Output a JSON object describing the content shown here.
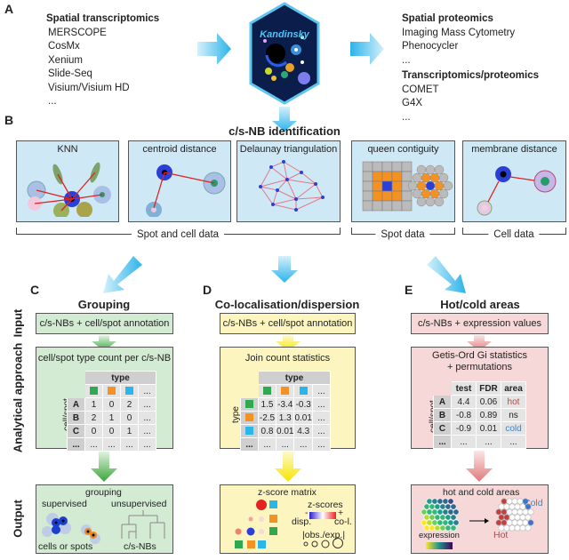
{
  "panel_labels": {
    "a": "A",
    "b": "B",
    "c": "C",
    "d": "D",
    "e": "E"
  },
  "section_a": {
    "left": {
      "title": "Spatial transcriptomics",
      "items": [
        "MERSCOPE",
        "CosMx",
        "Xenium",
        "Slide-Seq",
        "Visium/Visium HD",
        "..."
      ]
    },
    "center": {
      "logo_text": "Kandinsky"
    },
    "right": {
      "title": "Spatial proteomics",
      "items": [
        "Imaging Mass Cytometry",
        "Phenocycler",
        "..."
      ],
      "title2": "Transcriptomics/proteomics",
      "items2": [
        "COMET",
        "G4X",
        "..."
      ]
    }
  },
  "section_b": {
    "title": "c/s-NB identification",
    "methods": [
      "KNN",
      "centroid distance",
      "Delaunay triangulation",
      "queen contiguity",
      "membrane distance"
    ],
    "groups": [
      "Spot and cell data",
      "Spot data",
      "Cell data"
    ]
  },
  "row_labels": {
    "input": "Input",
    "analytical": "Analytical approach",
    "output": "Output"
  },
  "colors": {
    "green": "#2fa84f",
    "orange": "#f39222",
    "blue": "#29b6ea",
    "hot": "#b24a4a",
    "cold": "#3f84c4"
  },
  "section_c": {
    "title": "Grouping",
    "input": "c/s-NBs + cell/spot annotation",
    "approach": "cell/spot type count per c/s-NB",
    "table": {
      "col_header": "type",
      "row_header": "cell/spot",
      "cols": [
        "green",
        "orange",
        "blue",
        "..."
      ],
      "rows": [
        {
          "label": "A",
          "values": [
            "1",
            "0",
            "2",
            "..."
          ]
        },
        {
          "label": "B",
          "values": [
            "2",
            "1",
            "0",
            "..."
          ]
        },
        {
          "label": "C",
          "values": [
            "0",
            "0",
            "1",
            "..."
          ]
        },
        {
          "label": "...",
          "values": [
            "...",
            "...",
            "...",
            "..."
          ]
        }
      ]
    },
    "output": {
      "title": "grouping",
      "supervised": "supervised",
      "unsupervised": "unsupervised",
      "cells": "cells or spots",
      "nbs": "c/s-NBs"
    }
  },
  "section_d": {
    "title": "Co-localisation/dispersion",
    "input": "c/s-NBs + cell/spot annotation",
    "approach": "Join count statistics",
    "table": {
      "col_header": "type",
      "row_header": "type",
      "cols": [
        "green",
        "orange",
        "blue",
        "..."
      ],
      "rows": [
        {
          "label": "green",
          "values": [
            "1.5",
            "-3.4",
            "-0.3",
            "..."
          ]
        },
        {
          "label": "orange",
          "values": [
            "-2.5",
            "1.3",
            "0.01",
            "..."
          ]
        },
        {
          "label": "blue",
          "values": [
            "0.8",
            "0.01",
            "4.3",
            "..."
          ]
        },
        {
          "label": "...",
          "values": [
            "...",
            "...",
            "...",
            "..."
          ]
        }
      ]
    },
    "output": {
      "title": "z-score matrix",
      "zscores": "z-scores",
      "minus": "-",
      "plus": "+",
      "disp": "disp.",
      "col": "co-l.",
      "ratio": "|obs./exp.|"
    }
  },
  "section_e": {
    "title": "Hot/cold areas",
    "input": "c/s-NBs + expression values",
    "approach": "Getis-Ord Gi statistics\n+ permutations",
    "table": {
      "row_header": "cell/spot",
      "cols": [
        "test",
        "FDR",
        "area"
      ],
      "rows": [
        {
          "label": "A",
          "values": [
            "4.4",
            "0.06",
            "hot"
          ]
        },
        {
          "label": "B",
          "values": [
            "-0.8",
            "0.89",
            "ns"
          ]
        },
        {
          "label": "C",
          "values": [
            "-0.9",
            "0.01",
            "cold"
          ]
        },
        {
          "label": "...",
          "values": [
            "...",
            "...",
            "..."
          ]
        }
      ]
    },
    "output": {
      "title": "hot and cold areas",
      "cold": "Cold",
      "hot": "Hot",
      "expression": "expression"
    }
  }
}
